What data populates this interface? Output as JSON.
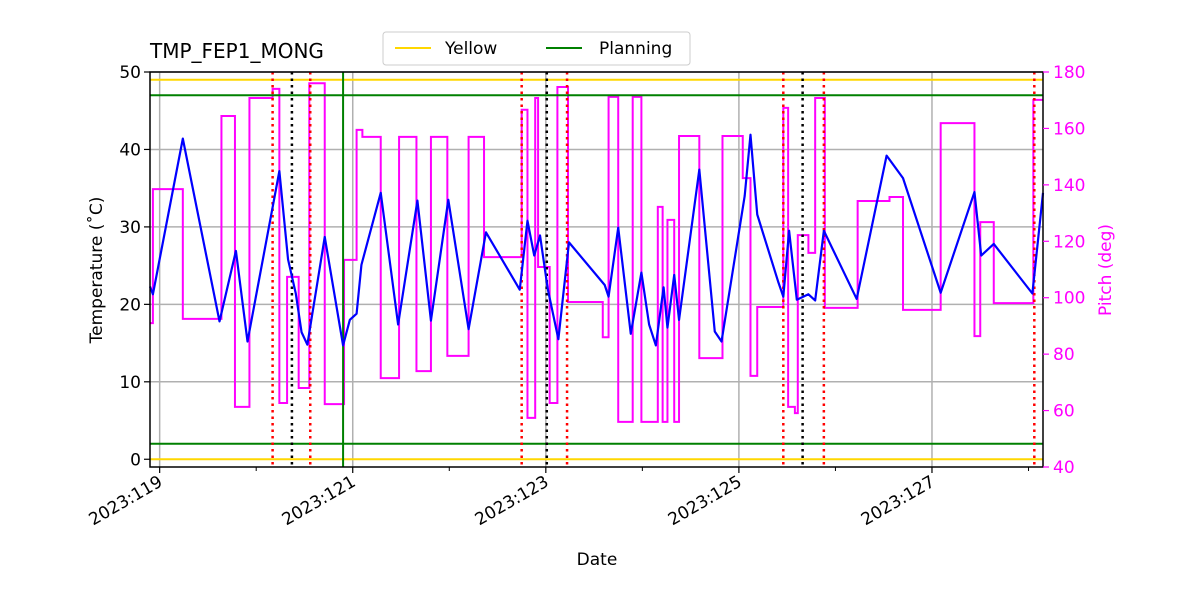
{
  "chart_data": {
    "type": "line",
    "title": "TMP_FEP1_MONG",
    "xlabel": "Date",
    "ylabel": "Temperature (˚C)",
    "y2label": "Pitch (deg)",
    "xlim": [
      118.9,
      128.15
    ],
    "ylim": [
      -1,
      50
    ],
    "y2lim": [
      40,
      180
    ],
    "x_ticks": [
      119,
      121,
      123,
      125,
      127
    ],
    "x_tick_labels": [
      "2023:119",
      "2023:121",
      "2023:123",
      "2023:125",
      "2023:127"
    ],
    "x_minor_ticks": [
      120,
      122,
      124,
      126,
      128
    ],
    "y_ticks": [
      0,
      10,
      20,
      30,
      40,
      50
    ],
    "y2_ticks": [
      40,
      60,
      80,
      100,
      120,
      140,
      160,
      180
    ],
    "grid": true,
    "legend": {
      "placement": "top-center",
      "entries": [
        {
          "label": "Yellow",
          "color": "#ffd700"
        },
        {
          "label": "Planning",
          "color": "#008000"
        }
      ]
    },
    "colors": {
      "temperature": "#0000ff",
      "pitch": "#ff00ff",
      "yellow": "#ffd700",
      "planning": "#008000",
      "red_events": "#ff0000",
      "black_events": "#000000"
    },
    "yellow_limits": [
      0,
      49
    ],
    "planning_limits": [
      2,
      47
    ],
    "planning_vertical": [
      120.9
    ],
    "red_dotted_events": [
      120.17,
      120.56,
      122.75,
      123.22,
      125.46,
      125.88,
      128.06
    ],
    "black_dotted_events": [
      120.37,
      123.01,
      125.66
    ],
    "temperature": [
      [
        118.9,
        22.3
      ],
      [
        118.93,
        21.3
      ],
      [
        119.24,
        41.4
      ],
      [
        119.62,
        17.8
      ],
      [
        119.79,
        26.9
      ],
      [
        119.91,
        15.2
      ],
      [
        120.24,
        37.2
      ],
      [
        120.33,
        25.8
      ],
      [
        120.41,
        21.4
      ],
      [
        120.47,
        16.4
      ],
      [
        120.53,
        14.8
      ],
      [
        120.71,
        28.7
      ],
      [
        120.9,
        14.7
      ],
      [
        120.97,
        18
      ],
      [
        121.04,
        18.8
      ],
      [
        121.09,
        25.1
      ],
      [
        121.29,
        34.4
      ],
      [
        121.47,
        17.4
      ],
      [
        121.67,
        33.4
      ],
      [
        121.81,
        17.9
      ],
      [
        121.99,
        33.5
      ],
      [
        122.2,
        16.8
      ],
      [
        122.38,
        29.3
      ],
      [
        122.73,
        21.9
      ],
      [
        122.81,
        30.8
      ],
      [
        122.88,
        26.3
      ],
      [
        122.94,
        28.9
      ],
      [
        123.02,
        22
      ],
      [
        123.13,
        15.5
      ],
      [
        123.24,
        28
      ],
      [
        123.61,
        22.5
      ],
      [
        123.65,
        21
      ],
      [
        123.75,
        29.9
      ],
      [
        123.88,
        16.2
      ],
      [
        123.99,
        24.1
      ],
      [
        124.07,
        17.4
      ],
      [
        124.14,
        14.7
      ],
      [
        124.22,
        22.2
      ],
      [
        124.26,
        17
      ],
      [
        124.33,
        23.8
      ],
      [
        124.38,
        18
      ],
      [
        124.59,
        37.4
      ],
      [
        124.75,
        16.5
      ],
      [
        124.82,
        15.2
      ],
      [
        125.06,
        34
      ],
      [
        125.12,
        41.9
      ],
      [
        125.19,
        31.6
      ],
      [
        125.41,
        22.8
      ],
      [
        125.46,
        21
      ],
      [
        125.52,
        29.5
      ],
      [
        125.6,
        20.6
      ],
      [
        125.72,
        21.3
      ],
      [
        125.79,
        20.5
      ],
      [
        125.88,
        29.5
      ],
      [
        126.22,
        20.7
      ],
      [
        126.53,
        39.2
      ],
      [
        126.7,
        36.3
      ],
      [
        127.09,
        21.5
      ],
      [
        127.44,
        34.5
      ],
      [
        127.51,
        26.3
      ],
      [
        127.64,
        27.8
      ],
      [
        128.04,
        21.4
      ],
      [
        128.15,
        34.4
      ]
    ],
    "pitch": [
      [
        118.9,
        91
      ],
      [
        118.93,
        138.5
      ],
      [
        119.24,
        92.5
      ],
      [
        119.64,
        164.4
      ],
      [
        119.78,
        61.3
      ],
      [
        119.93,
        170.8
      ],
      [
        120.17,
        174
      ],
      [
        120.24,
        62.7
      ],
      [
        120.32,
        107.4
      ],
      [
        120.44,
        68
      ],
      [
        120.55,
        176
      ],
      [
        120.71,
        62.3
      ],
      [
        120.91,
        113.4
      ],
      [
        121.04,
        159.5
      ],
      [
        121.1,
        157
      ],
      [
        121.29,
        71.5
      ],
      [
        121.48,
        157
      ],
      [
        121.66,
        74
      ],
      [
        121.81,
        157
      ],
      [
        121.98,
        79.4
      ],
      [
        122.2,
        157
      ],
      [
        122.36,
        114.4
      ],
      [
        122.75,
        166.6
      ],
      [
        122.81,
        57.4
      ],
      [
        122.89,
        170.8
      ],
      [
        122.92,
        110.9
      ],
      [
        123.04,
        62.7
      ],
      [
        123.12,
        174.7
      ],
      [
        123.23,
        98.5
      ],
      [
        123.59,
        86
      ],
      [
        123.65,
        171.2
      ],
      [
        123.75,
        56
      ],
      [
        123.9,
        171.2
      ],
      [
        123.99,
        56
      ],
      [
        124.16,
        132.2
      ],
      [
        124.21,
        56
      ],
      [
        124.26,
        127.6
      ],
      [
        124.33,
        56
      ],
      [
        124.38,
        157.3
      ],
      [
        124.59,
        78.6
      ],
      [
        124.83,
        157.3
      ],
      [
        125.04,
        142.4
      ],
      [
        125.12,
        72.3
      ],
      [
        125.19,
        96.7
      ],
      [
        125.46,
        167.3
      ],
      [
        125.51,
        61.3
      ],
      [
        125.58,
        59.1
      ],
      [
        125.61,
        122.2
      ],
      [
        125.72,
        115.9
      ],
      [
        125.79,
        170.8
      ],
      [
        125.89,
        96.4
      ],
      [
        126.23,
        134.3
      ],
      [
        126.56,
        135.7
      ],
      [
        126.7,
        95.7
      ],
      [
        127.09,
        161.9
      ],
      [
        127.44,
        86.4
      ],
      [
        127.5,
        126.8
      ],
      [
        127.64,
        98.1
      ],
      [
        128.05,
        170.1
      ],
      [
        128.15,
        170.1
      ]
    ]
  }
}
